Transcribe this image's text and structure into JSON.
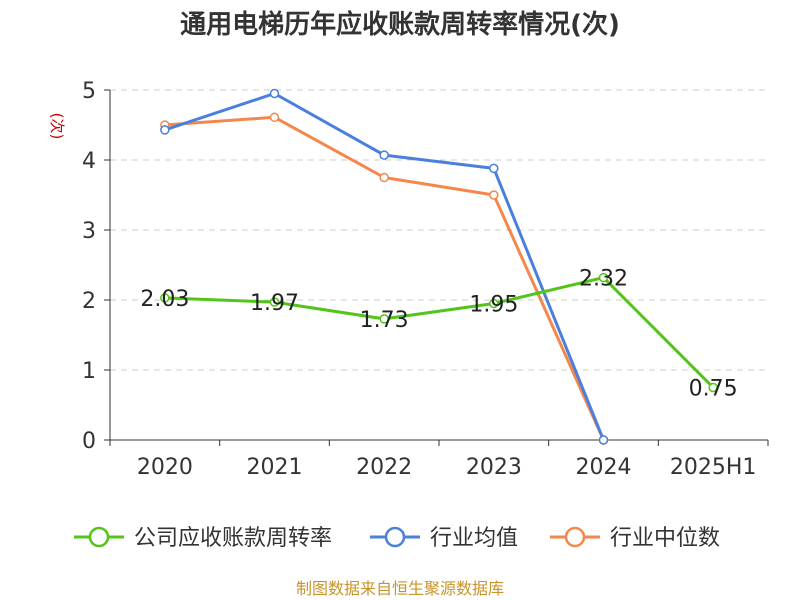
{
  "chart_data": {
    "type": "line",
    "title": "通用电梯历年应收账款周转率情况(次)",
    "ylabel": "(次)",
    "categories": [
      "2020",
      "2021",
      "2022",
      "2023",
      "2024",
      "2025H1"
    ],
    "yticks": [
      "0",
      "1",
      "2",
      "3",
      "4",
      "5"
    ],
    "ylim": [
      0,
      5
    ],
    "grid": true,
    "legend_position": "bottom",
    "series": [
      {
        "name": "公司应收账款周转率",
        "color": "#52c41a",
        "values": [
          2.03,
          1.97,
          1.73,
          1.95,
          2.32,
          0.75
        ],
        "labels": [
          "2.03",
          "1.97",
          "1.73",
          "1.95",
          "2.32",
          "0.75"
        ]
      },
      {
        "name": "行业均值",
        "color": "#4a7fdc",
        "values": [
          4.43,
          4.95,
          4.07,
          3.88,
          0,
          null
        ]
      },
      {
        "name": "行业中位数",
        "color": "#f4874b",
        "values": [
          4.5,
          4.61,
          3.75,
          3.5,
          0,
          null
        ]
      }
    ],
    "source": "制图数据来自恒生聚源数据库"
  },
  "colors": {
    "title": "#333333",
    "unit": "#cc0000",
    "source": "#c8942a",
    "grid": "#cccccc",
    "axis": "#333333"
  }
}
